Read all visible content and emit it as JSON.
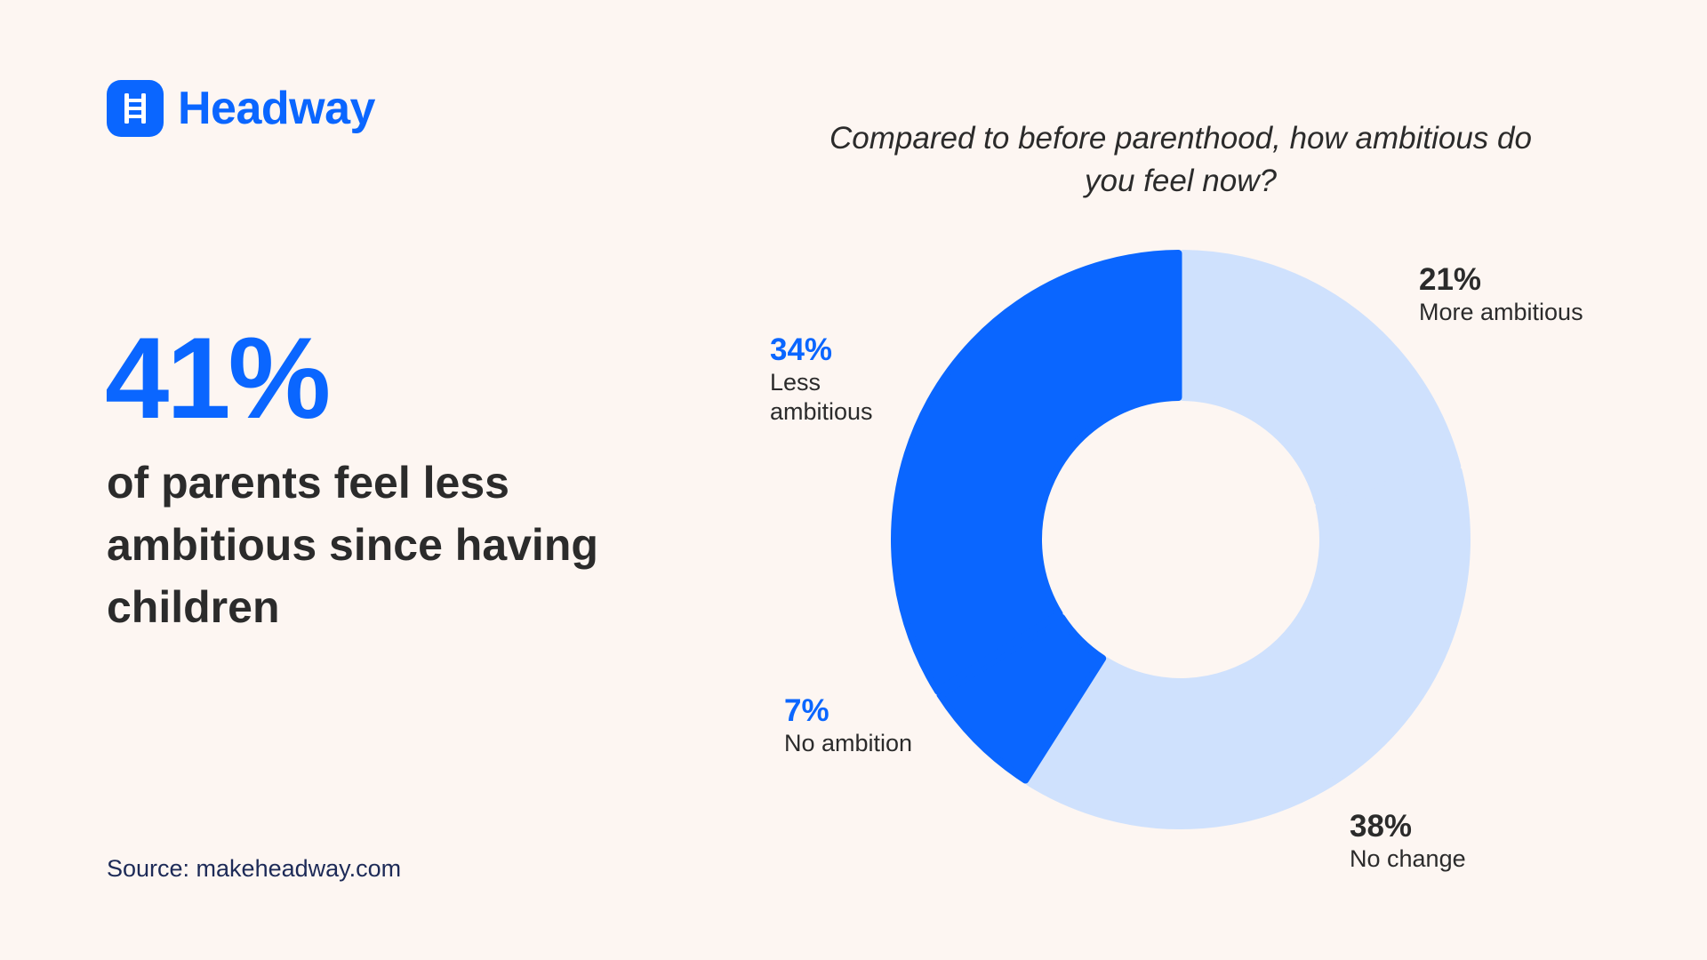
{
  "brand": {
    "name": "Headway",
    "logo_icon": "ladder-icon",
    "color": "#0a66ff"
  },
  "headline": {
    "stat": "41%",
    "text": "of parents feel less ambitious since having children"
  },
  "source": "Source: makeheadway.com",
  "chart_data": {
    "type": "pie",
    "style": "donut",
    "title": "Compared to before parenthood, how ambitious do you feel now?",
    "slices": [
      {
        "label": "More ambitious",
        "value": 21,
        "value_label": "21%",
        "color": "#cfe1fd",
        "pct_color": "#2b2b2b"
      },
      {
        "label": "No change",
        "value": 38,
        "value_label": "38%",
        "color": "#cfe1fd",
        "pct_color": "#2b2b2b"
      },
      {
        "label": "No ambition",
        "value": 7,
        "value_label": "7%",
        "color": "#0a66ff",
        "pct_color": "#0a66ff"
      },
      {
        "label": "Less ambitious",
        "value": 34,
        "value_label": "34%",
        "color": "#0a66ff",
        "pct_color": "#0a66ff"
      }
    ],
    "start": "12 o'clock",
    "direction": "clockwise",
    "legend": "none"
  }
}
